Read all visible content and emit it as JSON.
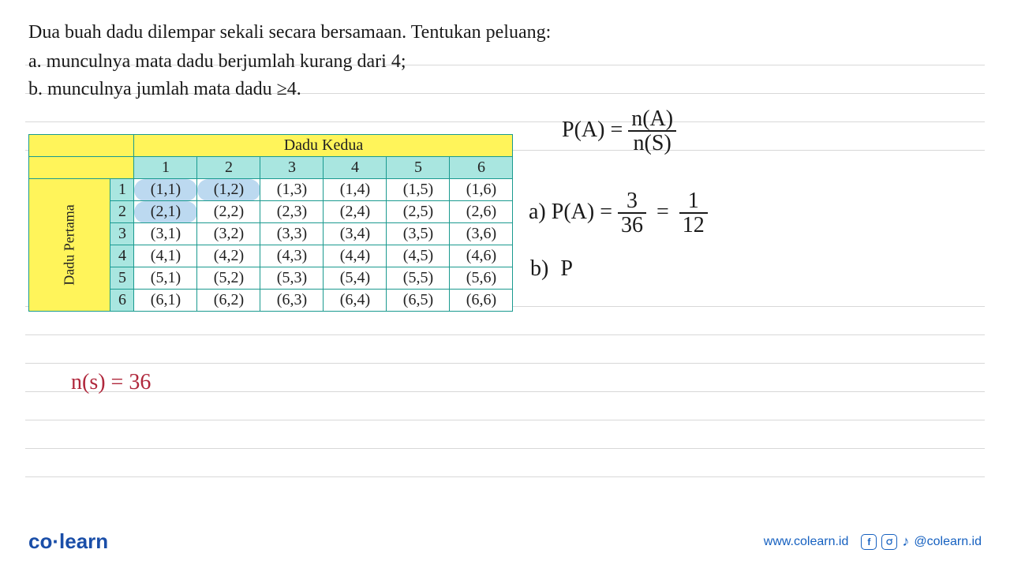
{
  "question": {
    "main": "Dua buah dadu dilempar sekali secara bersamaan. Tentukan peluang:",
    "a": "a.  munculnya mata dadu berjumlah kurang dari 4;",
    "b": "b.  munculnya jumlah mata dadu ≥4."
  },
  "table": {
    "top_header": "Dadu Kedua",
    "side_header": "Dadu Pertama",
    "col_nums": [
      "1",
      "2",
      "3",
      "4",
      "5",
      "6"
    ],
    "row_nums": [
      "1",
      "2",
      "3",
      "4",
      "5",
      "6"
    ],
    "cells": [
      [
        "(1,1)",
        "(1,2)",
        "(1,3)",
        "(1,4)",
        "(1,5)",
        "(1,6)"
      ],
      [
        "(2,1)",
        "(2,2)",
        "(2,3)",
        "(2,4)",
        "(2,5)",
        "(2,6)"
      ],
      [
        "(3,1)",
        "(3,2)",
        "(3,3)",
        "(3,4)",
        "(3,5)",
        "(3,6)"
      ],
      [
        "(4,1)",
        "(4,2)",
        "(4,3)",
        "(4,4)",
        "(4,5)",
        "(4,6)"
      ],
      [
        "(5,1)",
        "(5,2)",
        "(5,3)",
        "(5,4)",
        "(5,5)",
        "(5,6)"
      ],
      [
        "(6,1)",
        "(6,2)",
        "(6,3)",
        "(6,4)",
        "(6,5)",
        "(6,6)"
      ]
    ],
    "highlight": [
      [
        0,
        0
      ],
      [
        0,
        1
      ],
      [
        1,
        0
      ]
    ],
    "colors": {
      "border": "#1a9a8f",
      "yellow": "#fff45a",
      "teal": "#a9e6e0",
      "highlight": "#bcd9f0",
      "cell_bg": "#ffffff"
    }
  },
  "handwriting": {
    "formula": {
      "lhs": "P(A) =",
      "num": "n(A)",
      "den": "n(S)"
    },
    "a": {
      "label": "a)",
      "lhs": "P(A) =",
      "num1": "3",
      "den1": "36",
      "eq": "=",
      "num2": "1",
      "den2": "12"
    },
    "b": {
      "label": "b)",
      "rhs": "P"
    },
    "ns": "n(s) = 36",
    "color_main": "#1a1a1a",
    "color_red": "#b0283c"
  },
  "footer": {
    "logo_a": "co",
    "logo_b": "learn",
    "url": "www.colearn.id",
    "handle": "@colearn.id"
  },
  "ruled_line_color": "#d8d8d8",
  "ruled_line_positions": [
    82,
    118,
    154,
    190,
    388,
    424,
    460,
    496,
    532,
    568,
    604
  ]
}
